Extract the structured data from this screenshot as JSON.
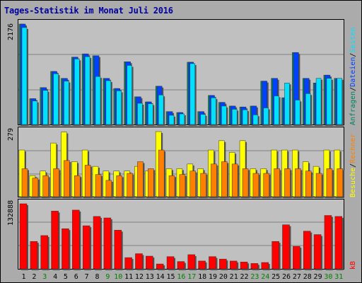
{
  "title": "Tages-Statistik im Monat Juli 2016",
  "colors": {
    "background": "#ababab",
    "panel": "#c0c0c0",
    "anfragen": "#008060",
    "dateien": "#0040ff",
    "seiten": "#00e0ff",
    "besuche": "#ffff00",
    "rechner": "#ff8000",
    "kb": "#ff0000",
    "weekday_label": "#000000",
    "weekend_label": "#008000"
  },
  "right_labels": {
    "top": [
      {
        "text": "Anfragen",
        "color": "#008060"
      },
      {
        "text": "/",
        "color": "#000000"
      },
      {
        "text": "Dateien",
        "color": "#0040ff"
      },
      {
        "text": "/",
        "color": "#000000"
      },
      {
        "text": "Seiten",
        "color": "#00e0ff"
      }
    ],
    "middle": [
      {
        "text": "Besuche",
        "color": "#ffff00"
      },
      {
        "text": "/",
        "color": "#000000"
      },
      {
        "text": "Rechner",
        "color": "#ff8000"
      }
    ],
    "bottom": [
      {
        "text": "kB",
        "color": "#ff0000"
      }
    ]
  },
  "chart_data": [
    {
      "type": "bar",
      "panel": "top",
      "ymax_label": "2176",
      "ylim": [
        0,
        2176
      ],
      "categories": [
        "1",
        "2",
        "3",
        "4",
        "5",
        "6",
        "7",
        "8",
        "9",
        "10",
        "11",
        "12",
        "13",
        "14",
        "15",
        "16",
        "17",
        "18",
        "19",
        "20",
        "21",
        "22",
        "23",
        "24",
        "25",
        "26",
        "27",
        "28",
        "29",
        "30",
        "31"
      ],
      "weekend": [
        3,
        9,
        10,
        16,
        17,
        23,
        24,
        30,
        31
      ],
      "series": [
        {
          "name": "Anfragen",
          "values": [
            2176,
            560,
            800,
            1150,
            1000,
            1460,
            1530,
            1490,
            1000,
            780,
            1360,
            600,
            490,
            830,
            280,
            260,
            1350,
            280,
            630,
            480,
            400,
            380,
            400,
            940,
            1000,
            580,
            1560,
            1000,
            900,
            1070,
            1000
          ]
        },
        {
          "name": "Dateien",
          "values": [
            2176,
            560,
            800,
            1150,
            1000,
            1460,
            1530,
            1490,
            1000,
            780,
            1360,
            600,
            490,
            830,
            280,
            260,
            1350,
            280,
            630,
            480,
            400,
            380,
            400,
            940,
            1000,
            580,
            1560,
            1000,
            900,
            1070,
            1000
          ]
        },
        {
          "name": "Seiten",
          "values": [
            2100,
            510,
            740,
            1100,
            940,
            1420,
            1470,
            1040,
            950,
            730,
            1280,
            460,
            450,
            640,
            200,
            230,
            1320,
            220,
            580,
            400,
            330,
            320,
            210,
            360,
            620,
            900,
            530,
            670,
            1000,
            1000,
            1000
          ]
        }
      ]
    },
    {
      "type": "bar",
      "panel": "middle",
      "ymax_label": "279",
      "ylim": [
        0,
        279
      ],
      "categories": [
        "1",
        "2",
        "3",
        "4",
        "5",
        "6",
        "7",
        "8",
        "9",
        "10",
        "11",
        "12",
        "13",
        "14",
        "15",
        "16",
        "17",
        "18",
        "19",
        "20",
        "21",
        "22",
        "23",
        "24",
        "25",
        "26",
        "27",
        "28",
        "29",
        "30",
        "31"
      ],
      "series": [
        {
          "name": "Besuche",
          "values": [
            200,
            90,
            110,
            230,
            277,
            150,
            200,
            130,
            110,
            110,
            110,
            130,
            110,
            279,
            120,
            120,
            140,
            120,
            200,
            240,
            190,
            240,
            120,
            120,
            200,
            200,
            200,
            150,
            130,
            200,
            200
          ]
        },
        {
          "name": "Rechner",
          "values": [
            120,
            80,
            90,
            120,
            155,
            90,
            135,
            95,
            70,
            90,
            100,
            150,
            120,
            200,
            90,
            95,
            110,
            100,
            140,
            150,
            140,
            120,
            100,
            100,
            120,
            120,
            120,
            110,
            100,
            120,
            120
          ]
        }
      ]
    },
    {
      "type": "bar",
      "panel": "bottom",
      "ymax_label": "132888",
      "ylim": [
        0,
        132888
      ],
      "categories": [
        "1",
        "2",
        "3",
        "4",
        "5",
        "6",
        "7",
        "8",
        "9",
        "10",
        "11",
        "12",
        "13",
        "14",
        "15",
        "16",
        "17",
        "18",
        "19",
        "20",
        "21",
        "22",
        "23",
        "24",
        "25",
        "26",
        "27",
        "28",
        "29",
        "30",
        "31"
      ],
      "series": [
        {
          "name": "kB",
          "values": [
            132888,
            56000,
            68000,
            118000,
            82000,
            120000,
            88000,
            107000,
            104000,
            79000,
            23000,
            31000,
            26000,
            10000,
            25000,
            15000,
            29000,
            16000,
            25000,
            20000,
            16000,
            14000,
            11000,
            13000,
            56000,
            90000,
            46000,
            77000,
            70000,
            109000,
            107000
          ]
        }
      ]
    }
  ]
}
